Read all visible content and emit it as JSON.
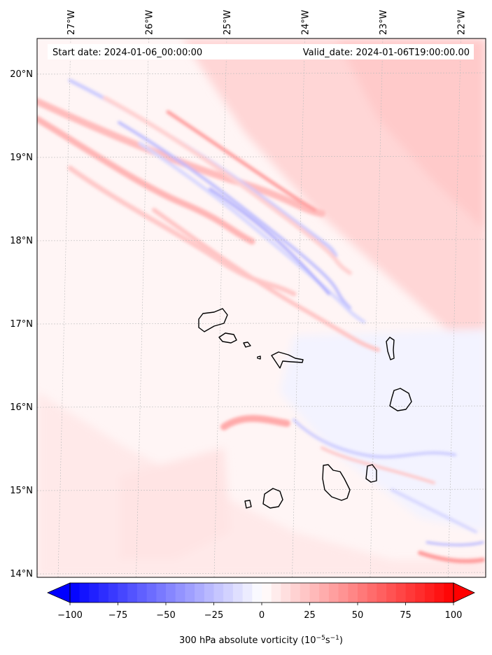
{
  "chart_data": {
    "type": "heatmap",
    "variable": "300 hPa absolute vorticity",
    "colorbar": {
      "label_text": "300 hPa absolute vorticity (10",
      "label_exp1": "−5",
      "label_mid": "s",
      "label_exp2": "−1",
      "label_close": ")",
      "min": -100,
      "max": 100,
      "ticks": [
        -100,
        -75,
        -50,
        -25,
        0,
        25,
        50,
        75,
        100
      ],
      "tick_labels": [
        "−100",
        "−75",
        "−50",
        "−25",
        "0",
        "25",
        "50",
        "75",
        "100"
      ],
      "low_color": "#0000ff",
      "mid_color": "#ffffff",
      "high_color": "#ff0000"
    },
    "annotations": {
      "start": "Start date: 2024-01-06_00:00:00",
      "valid": "Valid_date: 2024-01-06T19:00:00.00"
    },
    "lon_ticks": [
      -27,
      -26,
      -25,
      -24,
      -23,
      -22
    ],
    "lon_labels": [
      "27°W",
      "26°W",
      "25°W",
      "24°W",
      "23°W",
      "22°W"
    ],
    "lat_ticks": [
      14,
      15,
      16,
      17,
      18,
      19,
      20
    ],
    "lat_labels": [
      "14°N",
      "15°N",
      "16°N",
      "17°N",
      "18°N",
      "19°N",
      "20°N"
    ],
    "lon_range": [
      -27.35,
      -21.6
    ],
    "lat_range": [
      13.95,
      20.42
    ],
    "islands": [
      "Santo Antão",
      "São Vicente",
      "Santa Luzia",
      "São Nicolau",
      "Sal",
      "Boa Vista",
      "Maio",
      "Santiago",
      "Fogo",
      "Brava"
    ]
  }
}
